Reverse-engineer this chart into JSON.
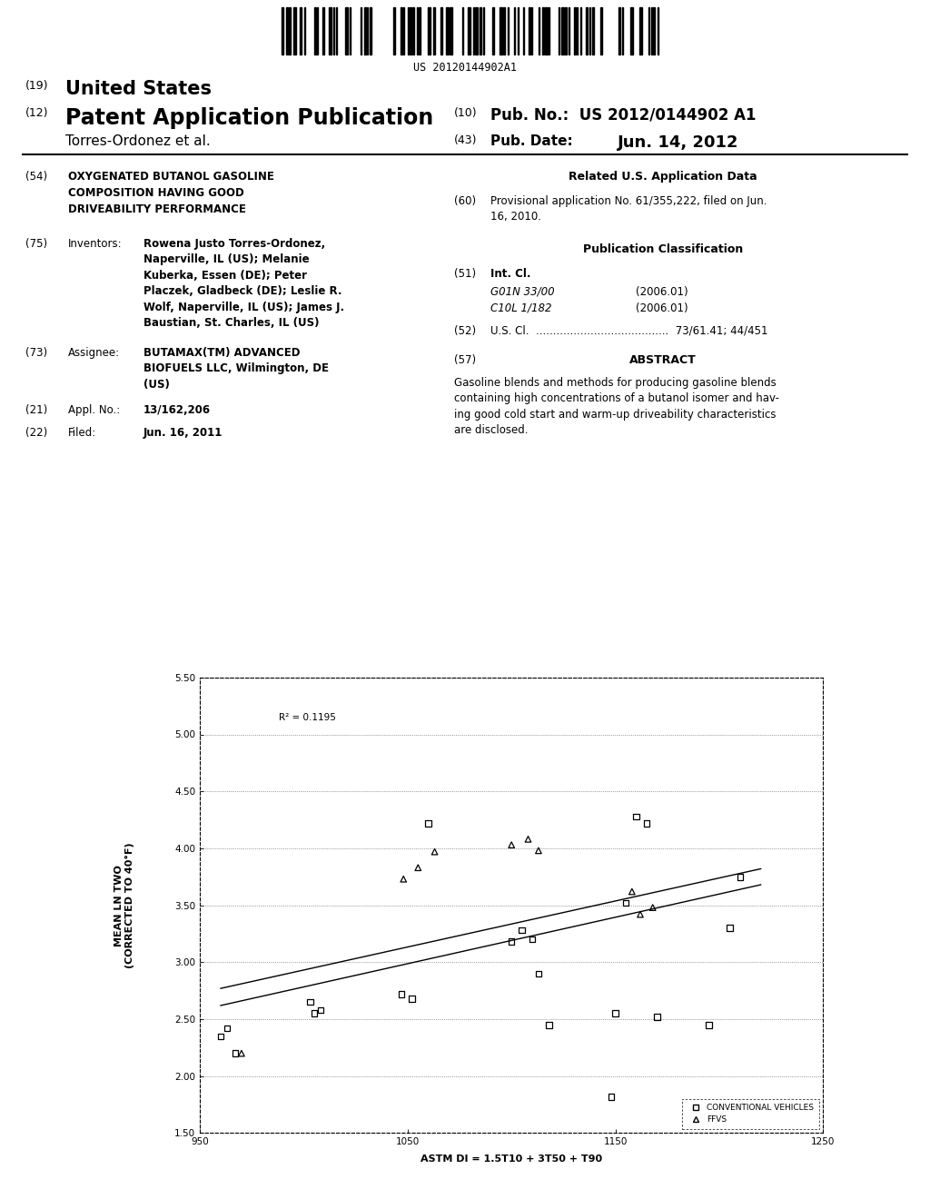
{
  "patent_number": "US 20120144902A1",
  "xlabel": "ASTM DI = 1.5T10 + 3T50 + T90",
  "ylabel": "MEAN LN TWO\n(CORRECTED TO 40°F)",
  "r2_text": "R² = 0.1195",
  "xlim": [
    950,
    1250
  ],
  "ylim": [
    1.5,
    5.5
  ],
  "xticks": [
    950,
    1050,
    1150,
    1250
  ],
  "yticks": [
    1.5,
    2.0,
    2.5,
    3.0,
    3.5,
    4.0,
    4.5,
    5.0,
    5.5
  ],
  "conv_x": [
    960,
    963,
    967,
    1003,
    1005,
    1008,
    1047,
    1052,
    1060,
    1100,
    1105,
    1110,
    1113,
    1118,
    1150,
    1155,
    1160,
    1165,
    1170,
    1195,
    1205,
    1210,
    1148
  ],
  "conv_y": [
    2.35,
    2.42,
    2.2,
    2.65,
    2.55,
    2.58,
    2.72,
    2.68,
    4.22,
    3.18,
    3.28,
    3.2,
    2.9,
    2.45,
    2.55,
    3.52,
    4.28,
    4.22,
    2.52,
    2.45,
    3.3,
    3.75,
    1.82
  ],
  "ffv_x": [
    970,
    1048,
    1055,
    1063,
    1100,
    1108,
    1113,
    1158,
    1162,
    1168
  ],
  "ffv_y": [
    2.2,
    3.73,
    3.83,
    3.97,
    4.03,
    4.08,
    3.98,
    3.62,
    3.42,
    3.48
  ],
  "trend1_x": [
    960,
    1220
  ],
  "trend1_y": [
    2.62,
    3.68
  ],
  "trend2_x": [
    960,
    1220
  ],
  "trend2_y": [
    2.77,
    3.82
  ],
  "legend_labels": [
    "CONVENTIONAL VEHICLES",
    "FFVS"
  ],
  "bg": "#ffffff"
}
